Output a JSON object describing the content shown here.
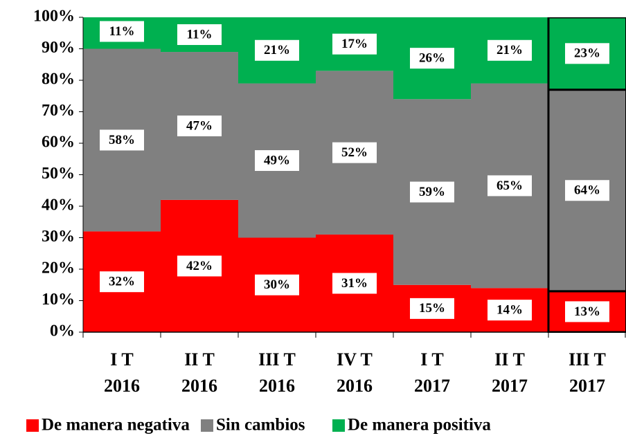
{
  "chart_data": {
    "type": "stacked_bar",
    "categories": [
      [
        "I T",
        "2016"
      ],
      [
        "II T",
        "2016"
      ],
      [
        "III T",
        "2016"
      ],
      [
        "IV T",
        "2016"
      ],
      [
        "I T",
        "2017"
      ],
      [
        "II T",
        "2017"
      ],
      [
        "III T",
        "2017"
      ]
    ],
    "series": [
      {
        "name": "De manera negativa",
        "color": "#ff0000",
        "values": [
          32,
          42,
          30,
          31,
          15,
          14,
          13
        ],
        "value_labels": [
          "32%",
          "42%",
          "30%",
          "31%",
          "15%",
          "14%",
          "13%"
        ]
      },
      {
        "name": "Sin cambios",
        "color": "#808080",
        "values": [
          58,
          47,
          49,
          52,
          59,
          65,
          64
        ],
        "value_labels": [
          "58%",
          "47%",
          "49%",
          "52%",
          "59%",
          "65%",
          "64%"
        ]
      },
      {
        "name": "De manera positiva",
        "color": "#00b050",
        "values": [
          11,
          11,
          21,
          17,
          26,
          21,
          23
        ],
        "value_labels": [
          "11%",
          "11%",
          "21%",
          "17%",
          "26%",
          "21%",
          "23%"
        ]
      }
    ],
    "ylim": [
      0,
      100
    ],
    "yticks": [
      {
        "value": 0,
        "label": "0%"
      },
      {
        "value": 10,
        "label": "10%"
      },
      {
        "value": 20,
        "label": "20%"
      },
      {
        "value": 30,
        "label": "30%"
      },
      {
        "value": 40,
        "label": "40%"
      },
      {
        "value": 50,
        "label": "50%"
      },
      {
        "value": 60,
        "label": "60%"
      },
      {
        "value": 70,
        "label": "70%"
      },
      {
        "value": 80,
        "label": "80%"
      },
      {
        "value": 90,
        "label": "90%"
      },
      {
        "value": 100,
        "label": "100%"
      }
    ]
  }
}
